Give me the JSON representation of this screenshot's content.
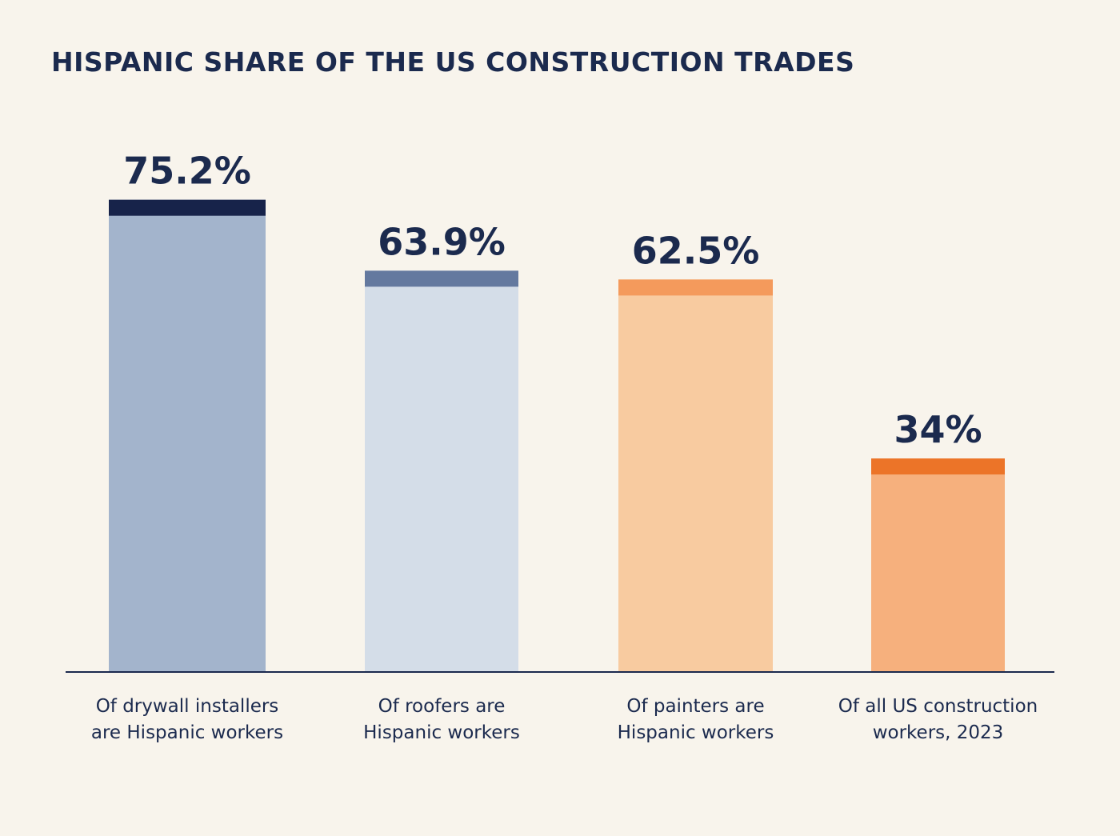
{
  "title": "HISPANIC SHARE OF THE US CONSTRUCTION TRADES",
  "chart_data": {
    "type": "bar",
    "title": "HISPANIC SHARE OF THE US CONSTRUCTION TRADES",
    "categories": [
      [
        "Of drywall installers",
        "are Hispanic workers"
      ],
      [
        "Of roofers are",
        "Hispanic workers"
      ],
      [
        "Of painters are",
        "Hispanic workers"
      ],
      [
        "Of all US construction",
        "workers, 2023"
      ]
    ],
    "values": [
      75.2,
      63.9,
      62.5,
      34
    ],
    "value_labels": [
      "75.2%",
      "63.9%",
      "62.5%",
      "34%"
    ],
    "unit": "%",
    "ylim": [
      0,
      80
    ],
    "grid": false,
    "legend": "none",
    "colors": {
      "bar_fill": [
        "#a3b4cc",
        "#d4dde8",
        "#f8cba0",
        "#f6b07d"
      ],
      "bar_cap": [
        "#17234a",
        "#64799f",
        "#f49a5c",
        "#ec7428"
      ],
      "axis": "#1b2a4e",
      "text": "#1b2a4e",
      "background": "#f8f4ec"
    }
  }
}
